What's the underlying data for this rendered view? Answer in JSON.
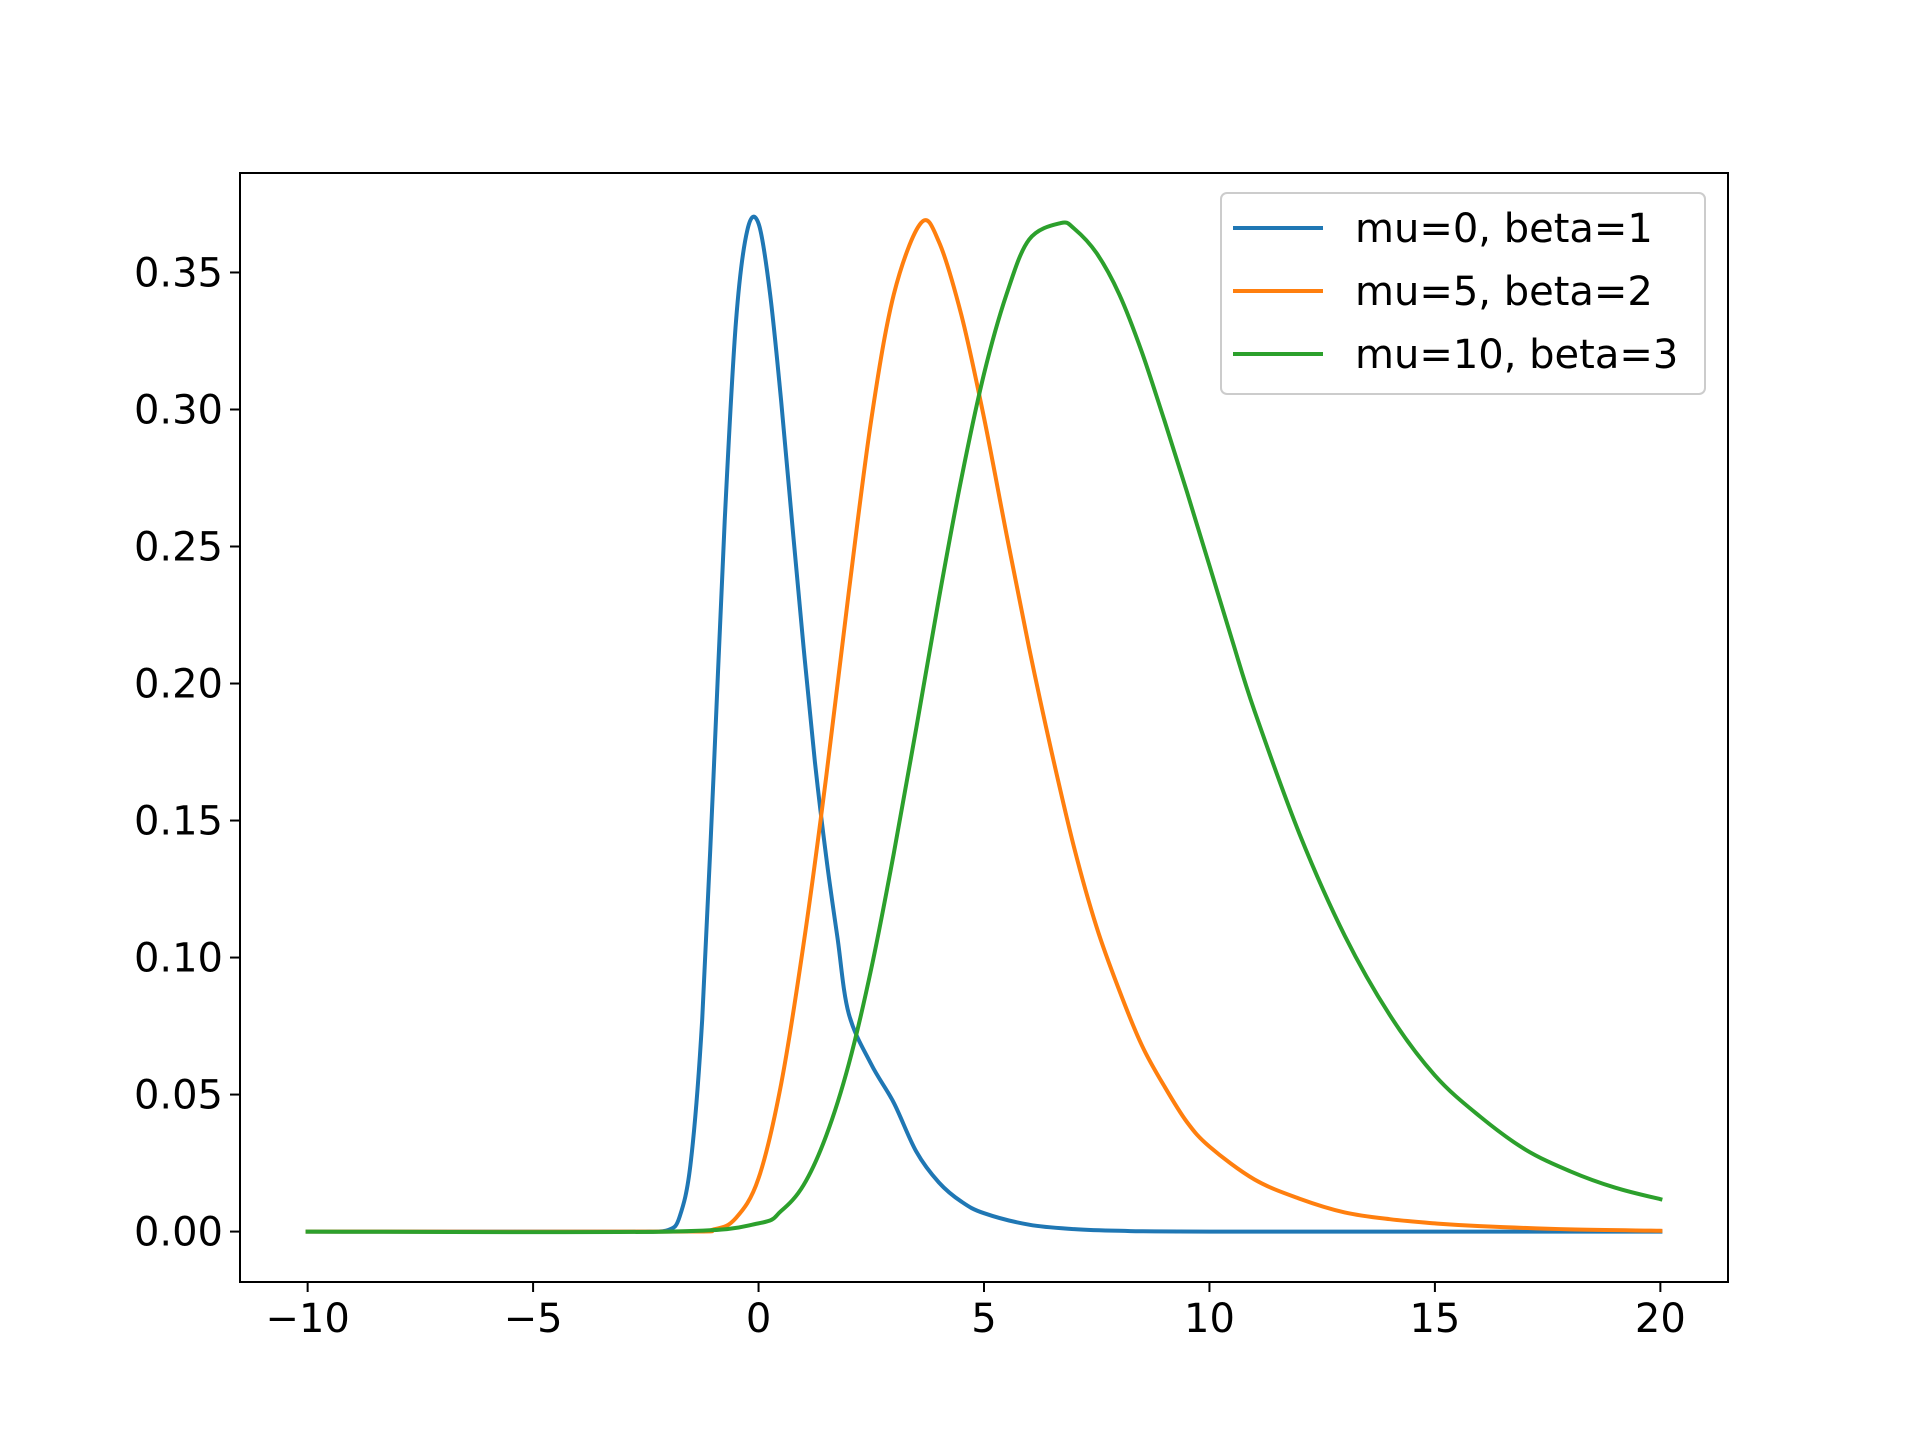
{
  "chart_data": {
    "type": "line",
    "title": "",
    "xlabel": "",
    "ylabel": "",
    "xlim": [
      -11.5,
      21.5
    ],
    "ylim": [
      -0.0184,
      0.3863
    ],
    "x_ticks": [
      -10,
      -5,
      0,
      5,
      10,
      15,
      20
    ],
    "x_tick_labels": [
      "−10",
      "−5",
      "0",
      "5",
      "10",
      "15",
      "20"
    ],
    "y_ticks": [
      0.0,
      0.05,
      0.1,
      0.15,
      0.2,
      0.25,
      0.3,
      0.35
    ],
    "y_tick_labels": [
      "0.00",
      "0.05",
      "0.10",
      "0.15",
      "0.20",
      "0.25",
      "0.30",
      "0.35"
    ],
    "grid": false,
    "legend_position": "top-right",
    "series": [
      {
        "name": "mu=0, beta=1",
        "color": "#1f77b4",
        "peak": {
          "x": 0.0,
          "y": 0.368
        },
        "x": [
          -10.0,
          -3.0,
          -2.5,
          -2.0,
          -1.75,
          -1.5,
          -1.25,
          -1.0,
          -0.75,
          -0.5,
          -0.25,
          0.0,
          0.25,
          0.5,
          0.75,
          1.0,
          1.25,
          1.5,
          1.75,
          2.0,
          2.5,
          3.0,
          3.5,
          4.0,
          4.5,
          5.0,
          6.0,
          7.0,
          8.0,
          10.0,
          20.0
        ],
        "y": [
          0.0,
          0.0,
          0.0,
          0.0006,
          0.0054,
          0.0258,
          0.0774,
          0.166,
          0.2593,
          0.3322,
          0.3654,
          0.3679,
          0.343,
          0.3033,
          0.2576,
          0.2131,
          0.1714,
          0.1368,
          0.1072,
          0.0796,
          0.061,
          0.047,
          0.0291,
          0.0179,
          0.0109,
          0.0067,
          0.0025,
          0.0009,
          0.0003,
          0.0,
          0.0
        ]
      },
      {
        "name": "mu=5, beta=2",
        "color": "#ff7f0e",
        "peak": {
          "x": 3.6,
          "y": 0.368
        },
        "x": [
          -10.0,
          -2.0,
          -1.0,
          -0.5,
          0.0,
          0.5,
          1.0,
          1.5,
          2.0,
          2.5,
          3.0,
          3.6,
          4.0,
          4.5,
          5.0,
          5.5,
          6.0,
          6.5,
          7.0,
          7.5,
          8.0,
          8.5,
          9.0,
          9.5,
          10.0,
          11.0,
          12.0,
          13.0,
          14.0,
          15.0,
          16.0,
          18.0,
          20.0
        ],
        "y": [
          0.0,
          0.0,
          0.0008,
          0.005,
          0.0194,
          0.0538,
          0.105,
          0.166,
          0.2331,
          0.2964,
          0.342,
          0.368,
          0.3612,
          0.3343,
          0.297,
          0.2545,
          0.213,
          0.175,
          0.14,
          0.111,
          0.088,
          0.068,
          0.053,
          0.04,
          0.031,
          0.019,
          0.012,
          0.007,
          0.0045,
          0.003,
          0.002,
          0.0008,
          0.0003
        ]
      },
      {
        "name": "mu=10, beta=3",
        "color": "#2ca02c",
        "peak": {
          "x": 6.7,
          "y": 0.368
        },
        "x": [
          -10.0,
          -2.0,
          0.0,
          0.5,
          1.0,
          1.5,
          2.0,
          2.5,
          3.0,
          3.5,
          4.0,
          4.5,
          5.0,
          5.5,
          6.0,
          6.7,
          7.0,
          7.5,
          8.0,
          8.5,
          9.0,
          9.5,
          10.0,
          10.5,
          11.0,
          12.0,
          13.0,
          14.0,
          15.0,
          16.0,
          17.0,
          18.0,
          19.0,
          20.0
        ],
        "y": [
          0.0,
          0.0,
          0.003,
          0.0075,
          0.017,
          0.035,
          0.061,
          0.096,
          0.138,
          0.184,
          0.231,
          0.275,
          0.313,
          0.342,
          0.362,
          0.368,
          0.366,
          0.357,
          0.342,
          0.321,
          0.296,
          0.27,
          0.243,
          0.216,
          0.19,
          0.145,
          0.108,
          0.079,
          0.057,
          0.042,
          0.03,
          0.022,
          0.016,
          0.0118
        ]
      }
    ]
  }
}
